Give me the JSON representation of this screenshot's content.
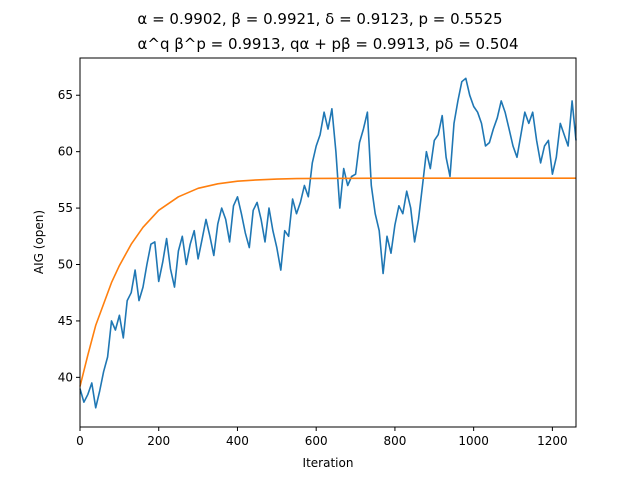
{
  "chart_data": {
    "type": "line",
    "title_line1": "α = 0.9902, β = 0.9921, δ = 0.9123, p = 0.5525",
    "title_line2": "α^q β^p = 0.9913, qα + pβ = 0.9913, pδ = 0.504",
    "xlabel": "Iteration",
    "ylabel": "AIG (open)",
    "xlim": [
      0,
      1260
    ],
    "ylim": [
      35.6,
      68.3
    ],
    "xticks": [
      0,
      200,
      400,
      600,
      800,
      1000,
      1200
    ],
    "yticks": [
      40,
      45,
      50,
      55,
      60,
      65
    ],
    "grid": false,
    "series": [
      {
        "color": "#1f77b4",
        "x": [
          0,
          10,
          20,
          30,
          40,
          50,
          60,
          70,
          80,
          90,
          100,
          110,
          120,
          130,
          140,
          150,
          160,
          170,
          180,
          190,
          200,
          210,
          220,
          230,
          240,
          250,
          260,
          270,
          280,
          290,
          300,
          310,
          320,
          330,
          340,
          350,
          360,
          370,
          380,
          390,
          400,
          410,
          420,
          430,
          440,
          450,
          460,
          470,
          480,
          490,
          500,
          510,
          520,
          530,
          540,
          550,
          560,
          570,
          580,
          590,
          600,
          610,
          620,
          630,
          640,
          650,
          660,
          670,
          680,
          690,
          700,
          710,
          720,
          730,
          740,
          750,
          760,
          770,
          780,
          790,
          800,
          810,
          820,
          830,
          840,
          850,
          860,
          870,
          880,
          890,
          900,
          910,
          920,
          930,
          940,
          950,
          960,
          970,
          980,
          990,
          1000,
          1010,
          1020,
          1030,
          1040,
          1050,
          1060,
          1070,
          1080,
          1090,
          1100,
          1110,
          1120,
          1130,
          1140,
          1150,
          1160,
          1170,
          1180,
          1190,
          1200,
          1210,
          1220,
          1230,
          1240,
          1250,
          1260
        ],
        "y": [
          39.0,
          37.8,
          38.5,
          39.5,
          37.3,
          38.8,
          40.5,
          41.8,
          45.0,
          44.2,
          45.5,
          43.5,
          46.8,
          47.5,
          49.5,
          46.8,
          48.0,
          50.0,
          51.8,
          52.0,
          48.5,
          50.2,
          52.3,
          49.6,
          48.0,
          51.2,
          52.5,
          50.0,
          51.8,
          53.0,
          50.5,
          52.2,
          54.0,
          52.5,
          50.8,
          53.6,
          55.0,
          54.0,
          52.0,
          55.2,
          56.0,
          54.5,
          52.8,
          51.5,
          54.8,
          55.5,
          54.0,
          52.0,
          55.0,
          53.0,
          51.5,
          49.5,
          53.0,
          52.5,
          55.8,
          54.5,
          55.5,
          57.0,
          56.0,
          59.0,
          60.5,
          61.5,
          63.5,
          62.0,
          63.8,
          60.0,
          55.0,
          58.5,
          57.0,
          57.8,
          58.0,
          60.8,
          62.0,
          63.5,
          57.0,
          54.5,
          53.0,
          49.2,
          52.5,
          51.0,
          53.5,
          55.2,
          54.5,
          56.5,
          55.0,
          52.0,
          54.0,
          57.0,
          60.0,
          58.5,
          61.0,
          61.5,
          63.2,
          59.5,
          57.8,
          62.5,
          64.5,
          66.2,
          66.5,
          65.0,
          64.0,
          63.5,
          62.5,
          60.5,
          60.8,
          62.0,
          63.0,
          64.5,
          63.5,
          62.0,
          60.5,
          59.5,
          61.5,
          63.5,
          62.5,
          63.5,
          61.0,
          59.0,
          60.5,
          61.0,
          58.0,
          59.5,
          62.5,
          61.5,
          60.5,
          64.5,
          61.0
        ]
      },
      {
        "color": "#ff7f0e",
        "x": [
          0,
          20,
          40,
          60,
          80,
          100,
          130,
          160,
          200,
          250,
          300,
          350,
          400,
          450,
          500,
          550,
          600,
          700,
          800,
          900,
          1000,
          1100,
          1200,
          1260
        ],
        "y": [
          39.2,
          42.0,
          44.6,
          46.5,
          48.4,
          49.9,
          51.8,
          53.3,
          54.8,
          56.0,
          56.75,
          57.15,
          57.38,
          57.5,
          57.57,
          57.61,
          57.63,
          57.64,
          57.65,
          57.65,
          57.65,
          57.65,
          57.65,
          57.65
        ]
      }
    ]
  }
}
